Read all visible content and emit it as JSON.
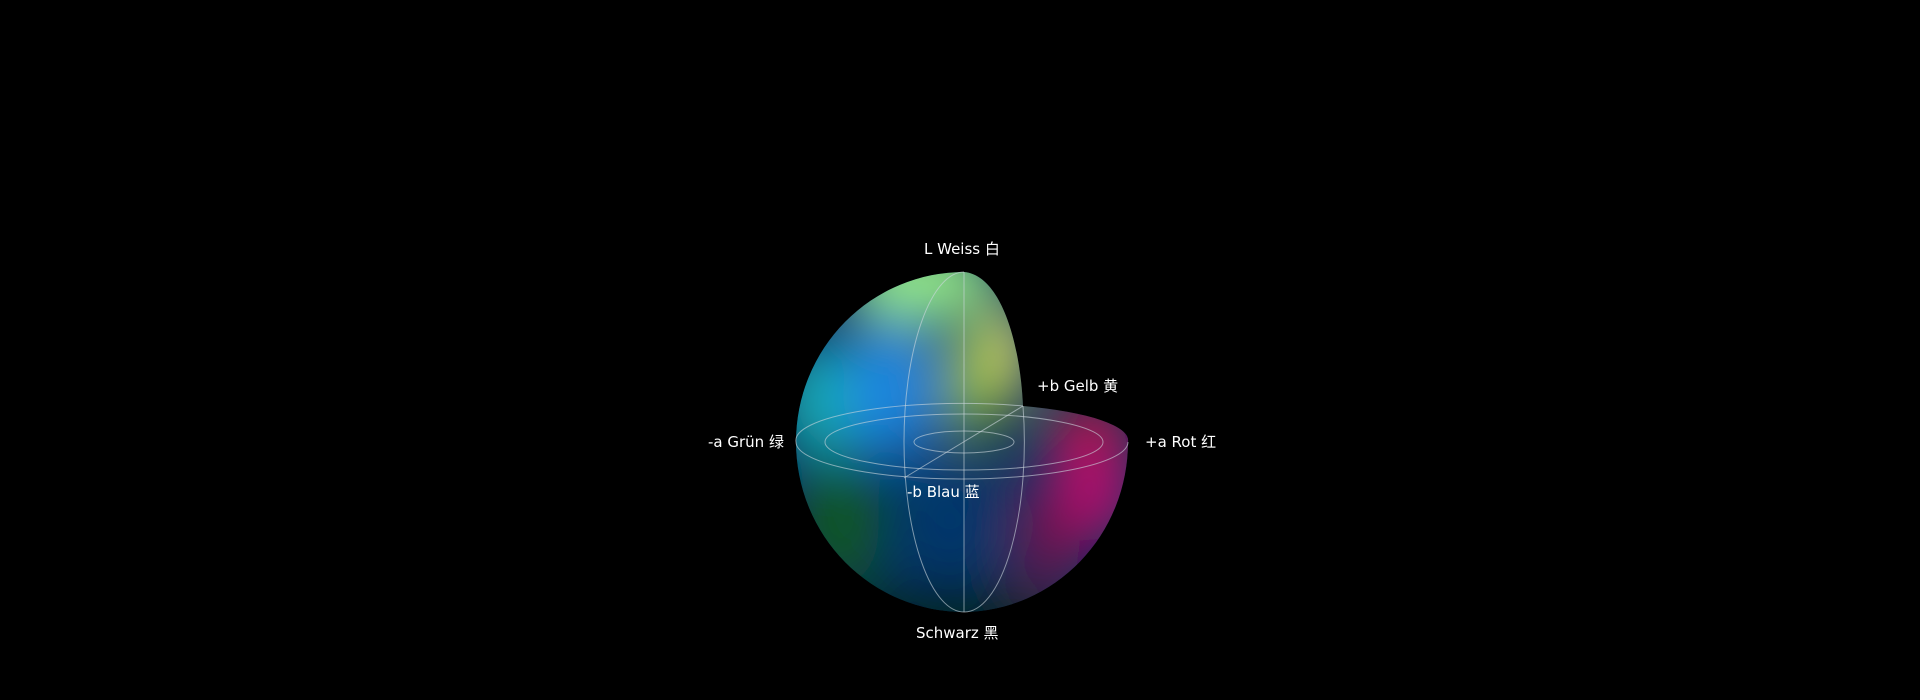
{
  "labels": {
    "top": "L Weiss 白",
    "plus_b": "+b Gelb 黄",
    "plus_a": "+a Rot 红",
    "minus_a": "-a Grün 绿",
    "minus_b": "-b Blau 蓝",
    "bottom": "Schwarz 黑"
  },
  "colors": {
    "background": "#000000",
    "green_top": "#9af08a",
    "cyan": "#18b0b0",
    "blue": "#1a86e0",
    "yellow_green": "#8cbc1e",
    "yellow": "#e4e07a",
    "red": "#e0102a",
    "magenta": "#b8106e",
    "dark_blue": "#04386c",
    "dark_green": "#0a4a20",
    "grid": "#cfd8e0"
  }
}
